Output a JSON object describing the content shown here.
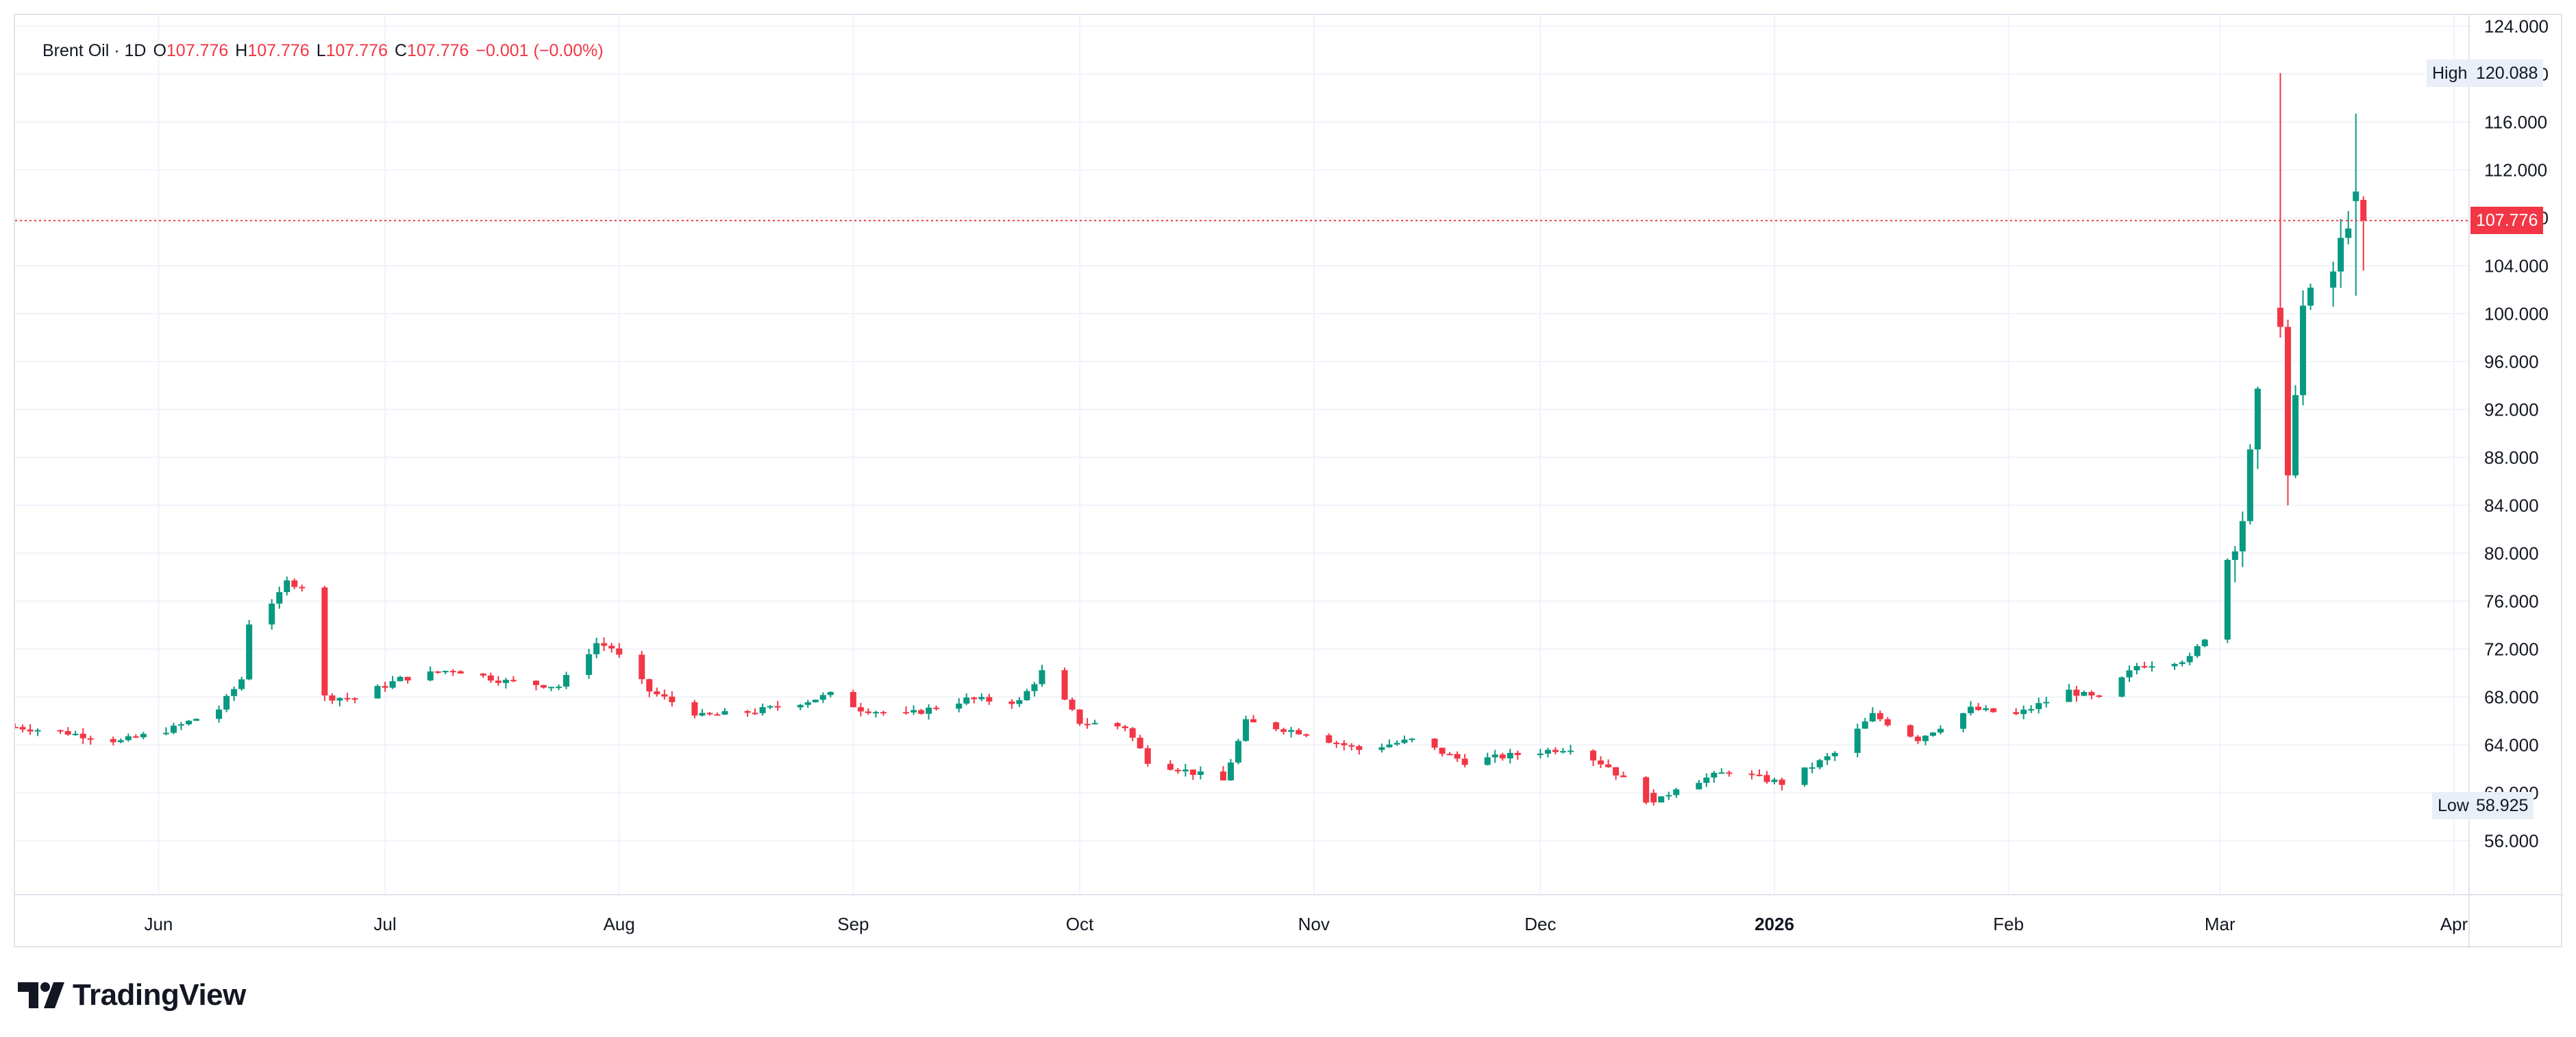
{
  "legend": {
    "symbol": "Brent Oil · 1D",
    "o_label": "O",
    "o_value": "107.776",
    "h_label": "H",
    "h_value": "107.776",
    "l_label": "L",
    "l_value": "107.776",
    "c_label": "C",
    "c_value": "107.776",
    "change": "−0.001 (−0.00%)"
  },
  "price_axis": {
    "ticks": [
      "124.000",
      "120.000",
      "116.000",
      "112.000",
      "108.000",
      "104.000",
      "100.000",
      "96.000",
      "92.000",
      "88.000",
      "84.000",
      "80.000",
      "76.000",
      "72.000",
      "68.000",
      "64.000",
      "60.000",
      "56.000"
    ]
  },
  "time_axis": {
    "labels": [
      {
        "text": "Jun",
        "date": "2025-06-01"
      },
      {
        "text": "Jul",
        "date": "2025-07-01"
      },
      {
        "text": "Aug",
        "date": "2025-08-01"
      },
      {
        "text": "Sep",
        "date": "2025-09-01"
      },
      {
        "text": "Oct",
        "date": "2025-10-01"
      },
      {
        "text": "Nov",
        "date": "2025-11-01"
      },
      {
        "text": "Dec",
        "date": "2025-12-01"
      },
      {
        "text": "2026",
        "date": "2026-01-01",
        "bold": true
      },
      {
        "text": "Feb",
        "date": "2026-02-01"
      },
      {
        "text": "Mar",
        "date": "2026-03-01"
      },
      {
        "text": "Apr",
        "date": "2026-04-01"
      }
    ]
  },
  "high_marker": {
    "label": "High",
    "value": "120.088"
  },
  "low_marker": {
    "label": "Low",
    "value": "58.925"
  },
  "last_price": {
    "value": "107.776"
  },
  "brand": {
    "name": "TradingView"
  },
  "colors": {
    "up": "#089981",
    "down": "#f23645",
    "grid": "#f0f3fa",
    "text": "#131722",
    "last_line": "#f23645"
  },
  "chart_data": {
    "type": "candlestick",
    "title": "Brent Oil · 1D",
    "ylim": [
      54,
      126
    ],
    "xlim": [
      "2025-05-13",
      "2026-04-03"
    ],
    "grid": true,
    "anchors": [
      [
        "2025-05-13",
        65.5
      ],
      [
        "2025-05-20",
        65.0
      ],
      [
        "2025-05-27",
        64.3
      ],
      [
        "2025-06-03",
        65.4
      ],
      [
        "2025-06-09",
        67.0
      ],
      [
        "2025-06-12",
        69.5
      ],
      [
        "2025-06-13",
        74.2
      ],
      [
        "2025-06-17",
        76.5
      ],
      [
        "2025-06-18",
        77.6
      ],
      [
        "2025-06-20",
        77.3
      ],
      [
        "2025-06-23",
        68.0
      ],
      [
        "2025-06-27",
        67.9
      ],
      [
        "2025-07-03",
        69.5
      ],
      [
        "2025-07-10",
        70.3
      ],
      [
        "2025-07-17",
        69.3
      ],
      [
        "2025-07-24",
        68.9
      ],
      [
        "2025-07-29",
        72.5
      ],
      [
        "2025-07-31",
        72.1
      ],
      [
        "2025-08-05",
        68.5
      ],
      [
        "2025-08-12",
        66.4
      ],
      [
        "2025-08-19",
        66.8
      ],
      [
        "2025-08-26",
        67.7
      ],
      [
        "2025-08-29",
        68.2
      ],
      [
        "2025-09-02",
        67.0
      ],
      [
        "2025-09-08",
        66.5
      ],
      [
        "2025-09-16",
        67.8
      ],
      [
        "2025-09-23",
        67.6
      ],
      [
        "2025-09-26",
        70.1
      ],
      [
        "2025-10-01",
        65.9
      ],
      [
        "2025-10-07",
        65.5
      ],
      [
        "2025-10-10",
        62.7
      ],
      [
        "2025-10-20",
        61.0
      ],
      [
        "2025-10-23",
        65.9
      ],
      [
        "2025-10-31",
        65.0
      ],
      [
        "2025-11-07",
        63.6
      ],
      [
        "2025-11-14",
        64.4
      ],
      [
        "2025-11-21",
        62.6
      ],
      [
        "2025-11-28",
        63.2
      ],
      [
        "2025-12-05",
        63.8
      ],
      [
        "2025-12-10",
        62.2
      ],
      [
        "2025-12-16",
        58.9
      ],
      [
        "2025-12-19",
        60.5
      ],
      [
        "2025-12-26",
        61.8
      ],
      [
        "2026-01-02",
        60.8
      ],
      [
        "2026-01-09",
        63.3
      ],
      [
        "2026-01-14",
        66.5
      ],
      [
        "2026-01-20",
        64.5
      ],
      [
        "2026-01-27",
        67.0
      ],
      [
        "2026-02-02",
        66.5
      ],
      [
        "2026-02-09",
        68.5
      ],
      [
        "2026-02-13",
        67.8
      ],
      [
        "2026-02-18",
        70.6
      ],
      [
        "2026-02-25",
        71.2
      ],
      [
        "2026-02-27",
        73.0
      ],
      [
        "2026-03-02",
        79.5
      ],
      [
        "2026-03-04",
        83.0
      ],
      [
        "2026-03-06",
        92.7
      ],
      [
        "2026-03-09",
        98.9
      ],
      [
        "2026-03-10",
        87.8
      ],
      [
        "2026-03-12",
        100.5
      ],
      [
        "2026-03-16",
        103.5
      ],
      [
        "2026-03-18",
        108.0
      ],
      [
        "2026-03-19",
        109.8
      ],
      [
        "2026-03-20",
        107.776
      ]
    ],
    "notable_bars": [
      {
        "date": "2026-03-09",
        "open": 100.5,
        "high": 120.088,
        "low": 98.0,
        "close": 98.9
      },
      {
        "date": "2026-03-10",
        "open": 98.9,
        "high": 99.5,
        "low": 84.0,
        "close": 86.5
      },
      {
        "date": "2026-03-19",
        "open": 109.4,
        "high": 116.7,
        "low": 101.5,
        "close": 110.2
      },
      {
        "date": "2025-12-16",
        "open": 60.0,
        "high": 60.3,
        "low": 58.925,
        "close": 59.2
      }
    ]
  }
}
